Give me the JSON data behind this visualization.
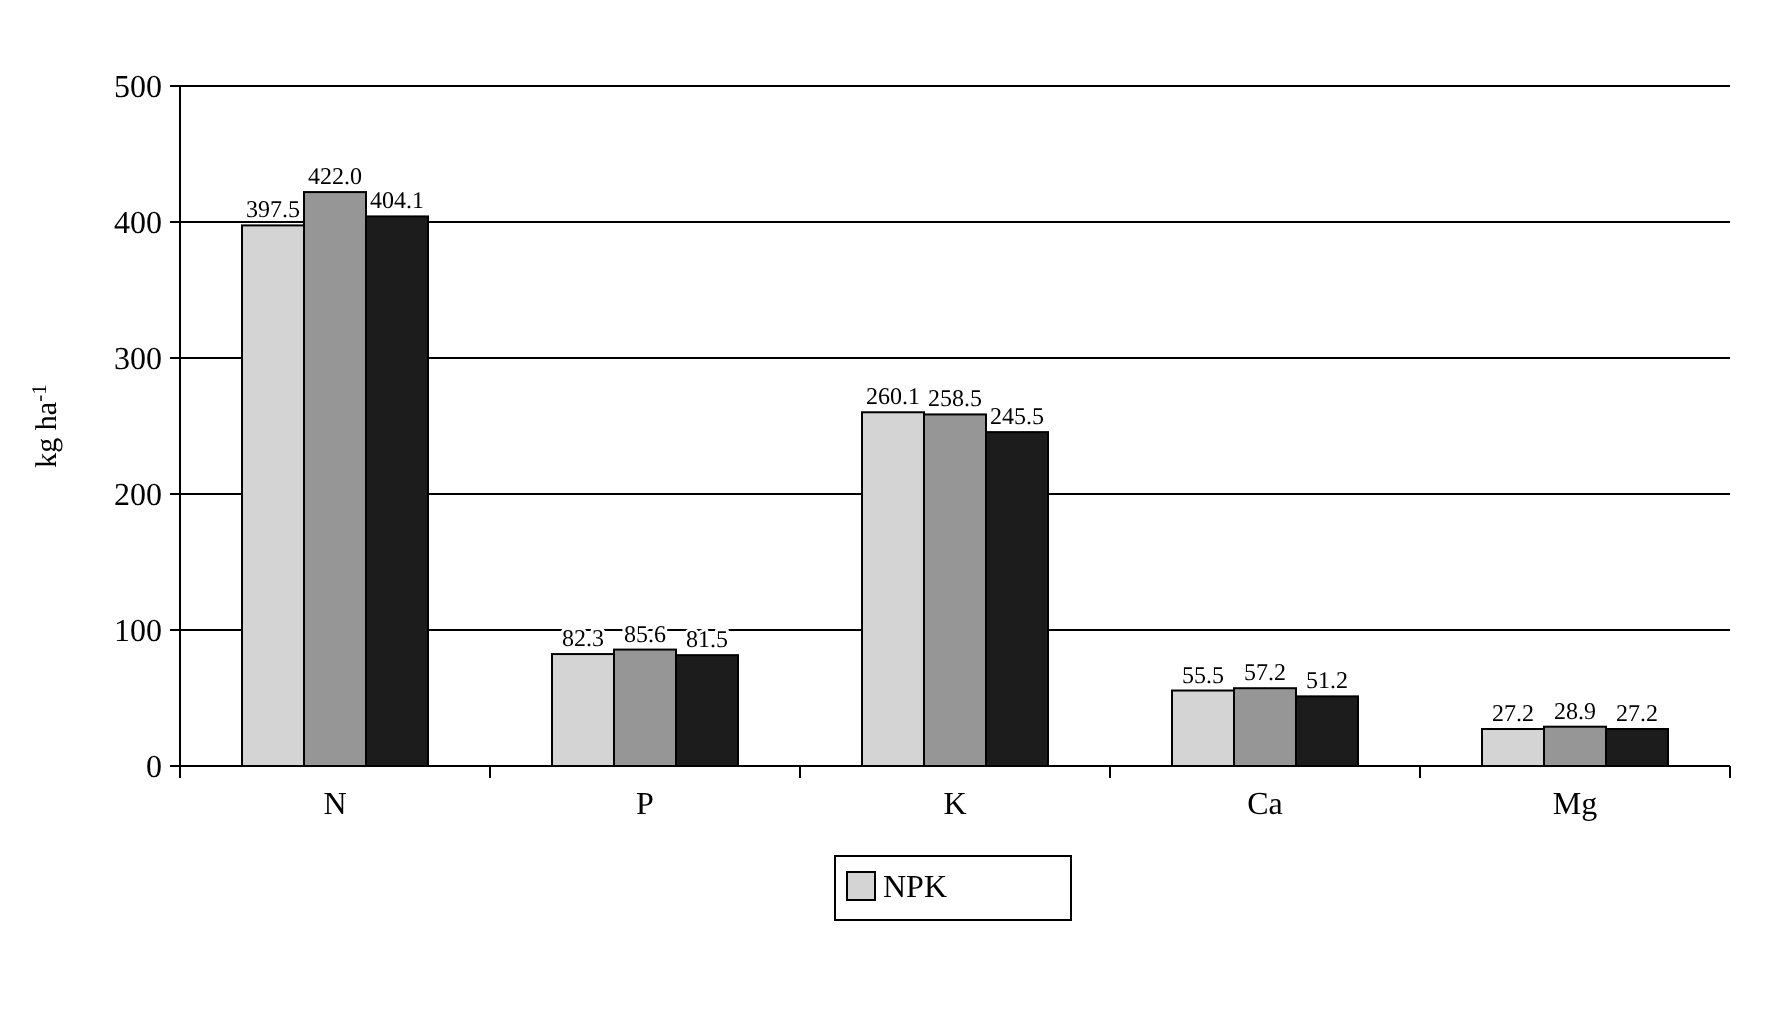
{
  "chart_data": {
    "type": "bar",
    "ylabel": "kg ha$^{-1}$",
    "categories": [
      "N",
      "P",
      "K",
      "Ca",
      "Mg"
    ],
    "series": [
      {
        "name": "NPK",
        "color": "#d4d4d4",
        "values": [
          397.5,
          82.3,
          260.1,
          55.5,
          27.2
        ]
      },
      {
        "color": "#969696",
        "values": [
          422.0,
          85.6,
          258.5,
          57.2,
          28.9
        ]
      },
      {
        "color": "#1c1c1c",
        "values": [
          404.1,
          81.5,
          245.5,
          51.2,
          27.2
        ]
      }
    ],
    "value_labels": [
      [
        "397.5",
        "82.3",
        "260.1",
        "55.5",
        "27.2"
      ],
      [
        "422.0",
        "85.6",
        "258.5",
        "57.2",
        "28.9"
      ],
      [
        "404.1",
        "81.5",
        "245.5",
        "51.2",
        "27.2"
      ]
    ],
    "ylim": [
      0,
      500
    ],
    "yticks": [
      0,
      100,
      200,
      300,
      400,
      500
    ],
    "grid": "y",
    "legend": "bottom"
  }
}
